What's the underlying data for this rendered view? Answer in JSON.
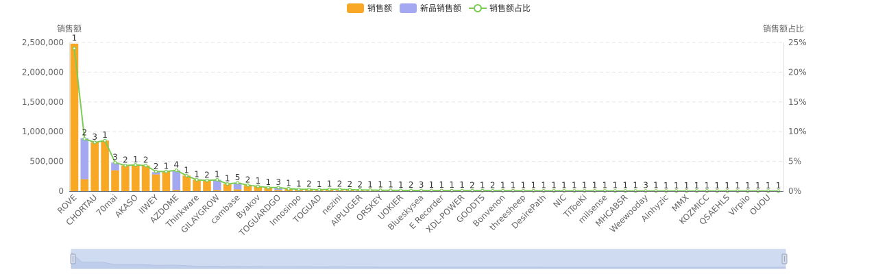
{
  "legend": {
    "items": [
      {
        "label": "销售额",
        "color": "#F9A825"
      },
      {
        "label": "新品销售额",
        "color": "#A3A8F0"
      },
      {
        "label": "销售额占比",
        "color": "#7CCB54"
      }
    ]
  },
  "chart_data": {
    "type": "bar",
    "y_left_label": "销售额",
    "y_right_label": "销售额占比",
    "y_left_ticks": [
      "0",
      "500,000",
      "1,000,000",
      "1,500,000",
      "2,000,000",
      "2,500,000"
    ],
    "y_right_ticks": [
      "0%",
      "5%",
      "10%",
      "15%",
      "20%",
      "25%"
    ],
    "ylim_left": [
      0,
      2500000
    ],
    "ylim_right": [
      0,
      25
    ],
    "shown_x_labels": [
      "ROVE",
      "CHORTAU",
      "70mai",
      "AKASO",
      "IIWEY",
      "AZDOME",
      "Thinkware",
      "GILAYGROW",
      "cambase",
      "Byakov",
      "TOGUARDGO",
      "Innosinpo",
      "TOGUAD",
      "nezini",
      "AIPLUGER",
      "ORSKEY",
      "UOKIER",
      "Blueskysea",
      "E Recorder",
      "XDL-POWER",
      "GOODTS",
      "Bonvenon",
      "threesheep",
      "DesirePath",
      "NIC",
      "TiToeKi",
      "milsense",
      "MHCABSR",
      "Weewooday",
      "Ainhyzic",
      "MMX",
      "KOZMICC",
      "QSAEHLS",
      "Virpilo",
      "OUOU"
    ],
    "bar_labels": [
      "1",
      "2",
      "3",
      "1",
      "3",
      "2",
      "1",
      "2",
      "2",
      "1",
      "4",
      "1",
      "1",
      "2",
      "1",
      "1",
      "5",
      "2",
      "1",
      "1",
      "3",
      "1",
      "1",
      "2",
      "1",
      "1",
      "2",
      "2",
      "2",
      "1",
      "1",
      "1",
      "1",
      "2",
      "3",
      "1",
      "1",
      "1",
      "1",
      "2",
      "1",
      "2",
      "1",
      "1",
      "1",
      "1",
      "1",
      "1",
      "1",
      "1",
      "1",
      "1",
      "1",
      "1",
      "1",
      "1",
      "3",
      "1",
      "1",
      "1",
      "1",
      "1",
      "1",
      "1",
      "1",
      "1",
      "1",
      "1",
      "1",
      "1"
    ],
    "series": [
      {
        "name": "销售额",
        "values": [
          2480000,
          200000,
          820000,
          850000,
          350000,
          430000,
          440000,
          430000,
          280000,
          330000,
          20000,
          260000,
          190000,
          180000,
          20000,
          120000,
          30000,
          100000,
          80000,
          60000,
          20000,
          40000,
          30000,
          30000,
          25000,
          30000,
          15000,
          25000,
          20000,
          18000,
          15000,
          15000,
          13000,
          12000,
          10000,
          10000,
          10000,
          9000,
          9000,
          8000,
          8000,
          7000,
          7000,
          7000,
          6000,
          6000,
          5000,
          5000,
          5000,
          4000,
          4000,
          4000,
          4000,
          3000,
          3000,
          3000,
          3000,
          3000,
          2000,
          2000,
          2000,
          2000,
          2000,
          2000,
          1000,
          1000,
          1000,
          1000,
          1000,
          1000
        ]
      },
      {
        "name": "新品销售额",
        "values": [
          0,
          690000,
          0,
          0,
          130000,
          0,
          0,
          0,
          40000,
          0,
          330000,
          0,
          0,
          0,
          170000,
          0,
          110000,
          0,
          0,
          0,
          40000,
          0,
          0,
          0,
          0,
          0,
          15000,
          0,
          0,
          0,
          0,
          0,
          0,
          0,
          0,
          0,
          0,
          0,
          0,
          0,
          0,
          0,
          0,
          0,
          0,
          0,
          0,
          0,
          0,
          0,
          0,
          0,
          0,
          0,
          0,
          0,
          0,
          0,
          0,
          0,
          0,
          0,
          0,
          0,
          0,
          0,
          0,
          0,
          0,
          0
        ]
      },
      {
        "name": "销售额占比",
        "values": [
          24.0,
          8.8,
          8.2,
          8.5,
          4.8,
          4.3,
          4.4,
          4.3,
          3.3,
          3.3,
          3.5,
          2.6,
          1.9,
          1.8,
          1.9,
          1.2,
          1.4,
          1.0,
          0.8,
          0.6,
          0.6,
          0.4,
          0.3,
          0.3,
          0.25,
          0.3,
          0.3,
          0.25,
          0.2,
          0.18,
          0.15,
          0.15,
          0.13,
          0.12,
          0.1,
          0.1,
          0.1,
          0.09,
          0.09,
          0.08,
          0.08,
          0.07,
          0.07,
          0.07,
          0.06,
          0.06,
          0.05,
          0.05,
          0.05,
          0.04,
          0.04,
          0.04,
          0.04,
          0.03,
          0.03,
          0.03,
          0.03,
          0.03,
          0.02,
          0.02,
          0.02,
          0.02,
          0.02,
          0.02,
          0.01,
          0.01,
          0.01,
          0.01,
          0.01,
          0.01
        ]
      }
    ],
    "colors": {
      "sales": "#F9A825",
      "new_sales": "#A3A8F0",
      "share_line": "#7CCB54",
      "grid": "#E6E6E6",
      "axis_text": "#666666"
    },
    "grid": true,
    "legend_position": "top-center",
    "data_zoom": true
  }
}
